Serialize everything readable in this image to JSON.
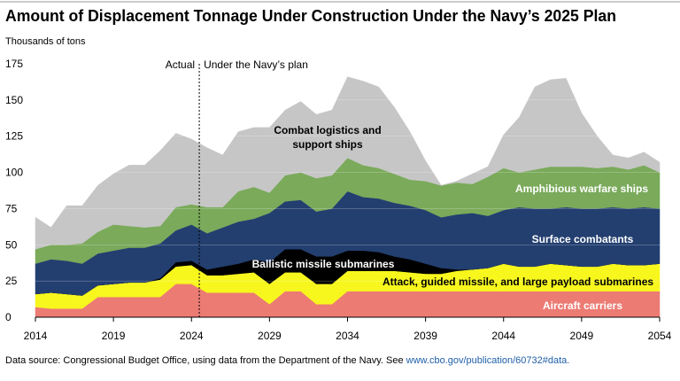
{
  "chart_data": {
    "type": "stacked_area",
    "title": "Amount of Displacement Tonnage Under Construction Under the Navy’s 2025 Plan",
    "y_axis_label": "Thousands of tons",
    "annotations": [
      {
        "text": "Actual"
      },
      {
        "text": "Under the Navy’s plan"
      }
    ],
    "divider_x": 2024.5,
    "source": "Data source: Congressional Budget Office, using data from the Department of the Navy. See ",
    "source_link": "www.cbo.gov/publication/60732#data.",
    "x": [
      2014,
      2015,
      2016,
      2017,
      2018,
      2019,
      2020,
      2021,
      2022,
      2023,
      2024,
      2025,
      2026,
      2027,
      2028,
      2029,
      2030,
      2031,
      2032,
      2033,
      2034,
      2035,
      2036,
      2037,
      2038,
      2039,
      2040,
      2041,
      2042,
      2043,
      2044,
      2045,
      2046,
      2047,
      2048,
      2049,
      2050,
      2051,
      2052,
      2053,
      2054
    ],
    "xlim": [
      2014,
      2054
    ],
    "xticks": [
      2014,
      2019,
      2024,
      2029,
      2034,
      2039,
      2044,
      2049,
      2054
    ],
    "ylim": [
      0,
      175
    ],
    "yticks": [
      0,
      25,
      50,
      75,
      100,
      125,
      150,
      175
    ],
    "grid": true,
    "series": [
      {
        "name": "Aircraft carriers",
        "color": "#ec7b74",
        "values": [
          7,
          6,
          6,
          6,
          14,
          14,
          14,
          14,
          14,
          23,
          23,
          17,
          17,
          17,
          17,
          9,
          18,
          18,
          9,
          9,
          18,
          18,
          18,
          18,
          18,
          18,
          18,
          18,
          18,
          18,
          18,
          18,
          18,
          18,
          18,
          18,
          18,
          18,
          18,
          18,
          18
        ]
      },
      {
        "name": "Attack, guided missile, and large payload submarines",
        "color": "#f7f71e",
        "values": [
          9,
          11,
          10,
          9,
          8,
          9,
          10,
          10,
          12,
          12,
          13,
          12,
          12,
          13,
          14,
          14,
          13,
          13,
          14,
          14,
          14,
          14,
          14,
          14,
          13,
          12,
          12,
          14,
          15,
          16,
          19,
          17,
          17,
          19,
          18,
          17,
          17,
          19,
          18,
          18,
          19
        ]
      },
      {
        "name": "Ballistic missile submarines",
        "color": "#000000",
        "values": [
          0,
          0,
          0,
          0,
          0,
          0,
          0,
          0,
          1,
          3,
          3,
          4,
          6,
          7,
          9,
          15,
          16,
          16,
          19,
          19,
          14,
          14,
          13,
          10,
          9,
          7,
          4,
          1,
          0,
          0,
          0,
          0,
          0,
          0,
          0,
          0,
          0,
          0,
          0,
          0,
          0
        ]
      },
      {
        "name": "Surface combatants",
        "color": "#233f70",
        "values": [
          21,
          23,
          23,
          22,
          22,
          23,
          24,
          24,
          24,
          22,
          25,
          25,
          27,
          29,
          28,
          34,
          33,
          34,
          31,
          33,
          41,
          37,
          37,
          37,
          37,
          37,
          35,
          38,
          39,
          36,
          37,
          41,
          40,
          38,
          40,
          40,
          40,
          39,
          39,
          40,
          38
        ]
      },
      {
        "name": "Amphibious warfare ships",
        "color": "#7aaa5a",
        "values": [
          10,
          10,
          11,
          14,
          15,
          18,
          15,
          14,
          12,
          16,
          14,
          18,
          14,
          21,
          22,
          14,
          18,
          19,
          23,
          23,
          23,
          22,
          21,
          20,
          18,
          20,
          22,
          22,
          20,
          27,
          29,
          24,
          27,
          29,
          28,
          29,
          28,
          28,
          27,
          29,
          25
        ]
      },
      {
        "name": "Combat logistics and support ships",
        "color": "#c6c6c6",
        "values": [
          22,
          12,
          27,
          26,
          32,
          35,
          42,
          43,
          52,
          51,
          45,
          41,
          36,
          41,
          41,
          45,
          45,
          49,
          44,
          45,
          56,
          58,
          56,
          46,
          33,
          14,
          0,
          1,
          7,
          7,
          23,
          38,
          57,
          60,
          61,
          37,
          22,
          8,
          8,
          9,
          7
        ]
      }
    ]
  }
}
